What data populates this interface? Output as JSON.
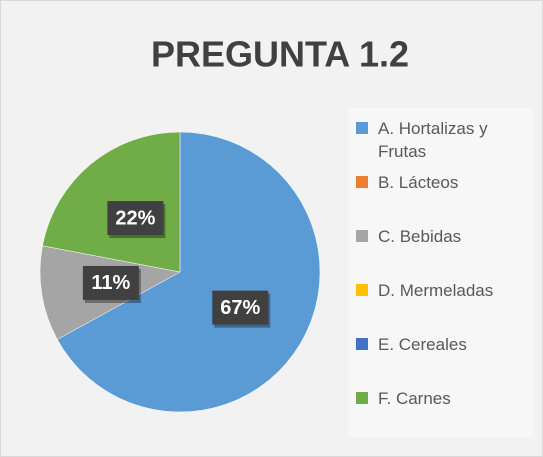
{
  "chart_data": {
    "type": "pie",
    "title": "PREGUNTA 1.2",
    "categories": [
      "A. Hortalizas y Frutas",
      "B. Lácteos",
      "C. Bebidas",
      "D. Mermeladas",
      "E. Cereales",
      "F. Carnes"
    ],
    "values": [
      67,
      0,
      11,
      0,
      0,
      22
    ],
    "value_labels": [
      "67%",
      null,
      "11%",
      null,
      null,
      "22%"
    ],
    "colors": [
      "#5b9bd5",
      "#ed7d31",
      "#a5a5a5",
      "#ffc000",
      "#4472c4",
      "#70ad47"
    ],
    "legend": "right"
  }
}
